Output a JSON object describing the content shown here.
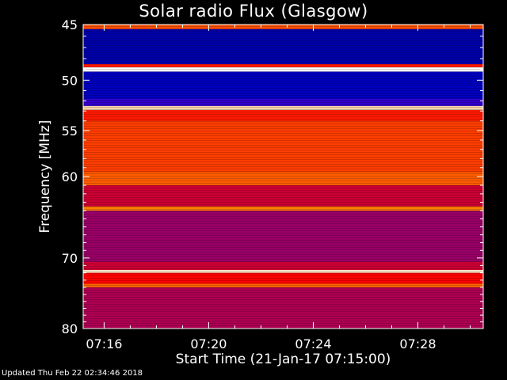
{
  "chart_data": {
    "type": "heatmap",
    "title": "Solar radio Flux (Glasgow)",
    "xlabel": "Start Time (21-Jan-17 07:15:00)",
    "ylabel": "Frequency [MHz]",
    "x_ticks": [
      "07:16",
      "07:20",
      "07:24",
      "07:28"
    ],
    "x_tick_minutes": [
      16,
      20,
      24,
      28
    ],
    "xlim_minutes": [
      15.2,
      30.5
    ],
    "y_ticks": [
      45,
      50,
      55,
      60,
      70,
      80
    ],
    "ylim": [
      45,
      80
    ],
    "y_scale": "log",
    "colormap": [
      "#000080",
      "#0000ff",
      "#ff0000",
      "#ff8000",
      "#ffffff"
    ],
    "bands": [
      {
        "from": 45.0,
        "to": 45.4,
        "level": 0.65
      },
      {
        "from": 45.4,
        "to": 48.5,
        "level": 0.08
      },
      {
        "from": 48.5,
        "to": 48.8,
        "level": 0.55
      },
      {
        "from": 48.8,
        "to": 49.2,
        "level": 1.0
      },
      {
        "from": 49.2,
        "to": 51.8,
        "level": 0.12
      },
      {
        "from": 51.8,
        "to": 52.5,
        "level": 0.3
      },
      {
        "from": 52.5,
        "to": 52.9,
        "level": 0.92
      },
      {
        "from": 52.9,
        "to": 54.0,
        "level": 0.55
      },
      {
        "from": 54.0,
        "to": 59.5,
        "level": 0.62
      },
      {
        "from": 59.5,
        "to": 61.0,
        "level": 0.68
      },
      {
        "from": 61.0,
        "to": 63.5,
        "level": 0.45
      },
      {
        "from": 63.5,
        "to": 64.0,
        "level": 0.75
      },
      {
        "from": 64.0,
        "to": 70.5,
        "level": 0.4
      },
      {
        "from": 70.5,
        "to": 71.6,
        "level": 0.45
      },
      {
        "from": 71.6,
        "to": 72.0,
        "level": 0.95
      },
      {
        "from": 72.0,
        "to": 73.5,
        "level": 0.5
      },
      {
        "from": 73.5,
        "to": 74.0,
        "level": 0.7
      },
      {
        "from": 74.0,
        "to": 80.0,
        "level": 0.42
      }
    ]
  },
  "footer": {
    "text": "Updated Thu Feb 22 02:34:46 2018"
  }
}
